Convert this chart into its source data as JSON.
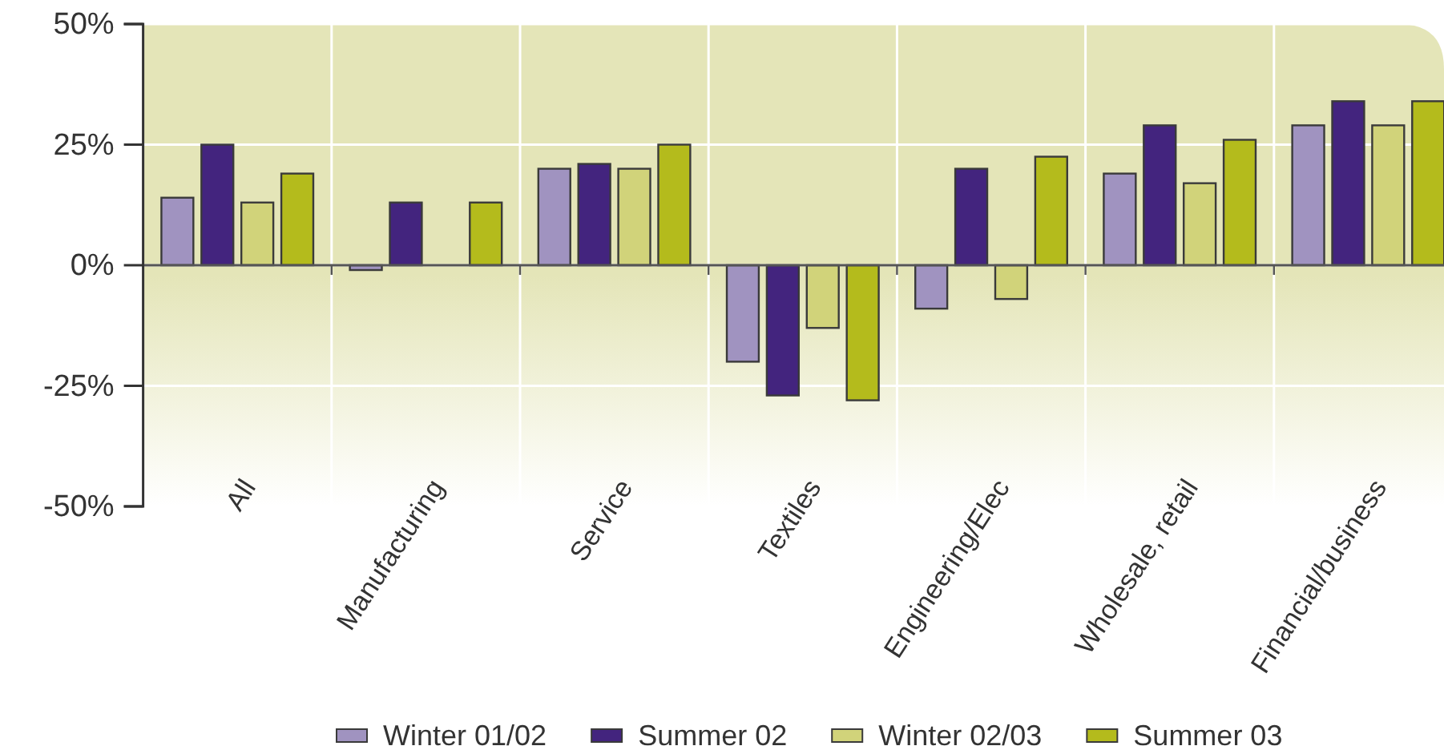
{
  "chart_data": {
    "type": "bar",
    "categories": [
      "All",
      "Manufacturing",
      "Service",
      "Textiles",
      "Engineering/Elec",
      "Wholesale, retail",
      "Financial/business"
    ],
    "series": [
      {
        "name": "Winter 01/02",
        "color": "#a093c0",
        "values": [
          14,
          -1,
          20,
          -20,
          -9,
          19,
          29
        ]
      },
      {
        "name": "Summer 02",
        "color": "#43247e",
        "values": [
          25,
          13,
          21,
          -27,
          20,
          29,
          34
        ]
      },
      {
        "name": "Winter 02/03",
        "color": "#d1d37a",
        "values": [
          13,
          null,
          20,
          -13,
          -7,
          17,
          29
        ]
      },
      {
        "name": "Summer 03",
        "color": "#b4bb1c",
        "values": [
          19,
          13,
          25,
          -28,
          22.5,
          26,
          34
        ]
      }
    ],
    "ylim": [
      -50,
      50
    ],
    "yticks": [
      {
        "value": -50,
        "label": "-50%"
      },
      {
        "value": -25,
        "label": "-25%"
      },
      {
        "value": 0,
        "label": "0%"
      },
      {
        "value": 25,
        "label": "25%"
      },
      {
        "value": 50,
        "label": "50%"
      }
    ],
    "grid": true,
    "legend": "bottom"
  }
}
